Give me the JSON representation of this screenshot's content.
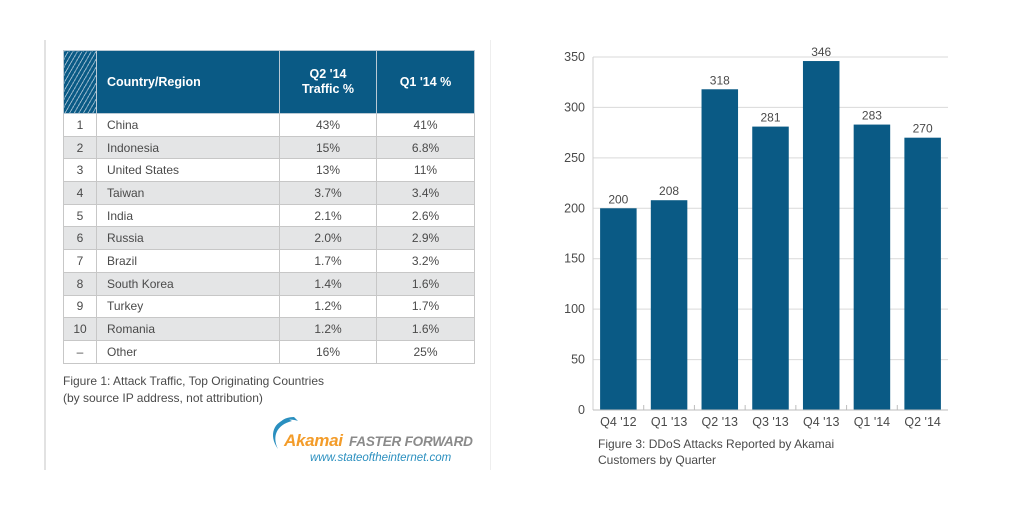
{
  "table": {
    "headers": {
      "rank": "",
      "country": "Country/Region",
      "q2_line1": "Q2 '14",
      "q2_line2": "Traffic %",
      "q1": "Q1 '14 %"
    },
    "rows": [
      {
        "rank": "1",
        "country": "China",
        "q2": "43%",
        "q1": "41%"
      },
      {
        "rank": "2",
        "country": "Indonesia",
        "q2": "15%",
        "q1": "6.8%"
      },
      {
        "rank": "3",
        "country": "United States",
        "q2": "13%",
        "q1": "11%"
      },
      {
        "rank": "4",
        "country": "Taiwan",
        "q2": "3.7%",
        "q1": "3.4%"
      },
      {
        "rank": "5",
        "country": "India",
        "q2": "2.1%",
        "q1": "2.6%"
      },
      {
        "rank": "6",
        "country": "Russia",
        "q2": "2.0%",
        "q1": "2.9%"
      },
      {
        "rank": "7",
        "country": "Brazil",
        "q2": "1.7%",
        "q1": "3.2%"
      },
      {
        "rank": "8",
        "country": "South Korea",
        "q2": "1.4%",
        "q1": "1.6%"
      },
      {
        "rank": "9",
        "country": "Turkey",
        "q2": "1.2%",
        "q1": "1.7%"
      },
      {
        "rank": "10",
        "country": "Romania",
        "q2": "1.2%",
        "q1": "1.6%"
      },
      {
        "rank": "–",
        "country": "Other",
        "q2": "16%",
        "q1": "25%"
      }
    ],
    "caption_line1": "Figure 1: Attack Traffic, Top Originating Countries",
    "caption_line2": "(by source IP address, not attribution)"
  },
  "branding": {
    "logo_word": "Akamai",
    "tagline": "FASTER FORWARD",
    "url": "www.stateoftheinternet.com",
    "colors": {
      "logo_orange": "#f39c2a",
      "swoosh_blue": "#2a8fbf",
      "tagline_gray": "#8a8a8a"
    }
  },
  "colors": {
    "header_blue": "#0a5a85",
    "bar_blue": "#0a5a85",
    "row_alt": "#e4e5e6",
    "grid": "#d9d9d9"
  },
  "chart_data": {
    "type": "bar",
    "title": "Figure 3: DDoS Attacks Reported by Akamai Customers by Quarter",
    "caption_line1": "Figure 3: DDoS Attacks Reported by Akamai",
    "caption_line2": "Customers by Quarter",
    "categories": [
      "Q4 '12",
      "Q1 '13",
      "Q2 '13",
      "Q3 '13",
      "Q4 '13",
      "Q1 '14",
      "Q2 '14"
    ],
    "values": [
      200,
      208,
      318,
      281,
      346,
      283,
      270
    ],
    "data_labels": [
      "200",
      "208",
      "318",
      "281",
      "346",
      "283",
      "270"
    ],
    "xlabel": "",
    "ylabel": "",
    "ylim": [
      0,
      350
    ],
    "yticks": [
      0,
      50,
      100,
      150,
      200,
      250,
      300,
      350
    ],
    "ytick_labels": [
      "0",
      "50",
      "100",
      "150",
      "200",
      "250",
      "300",
      "350"
    ],
    "grid": true,
    "legend": "none"
  }
}
